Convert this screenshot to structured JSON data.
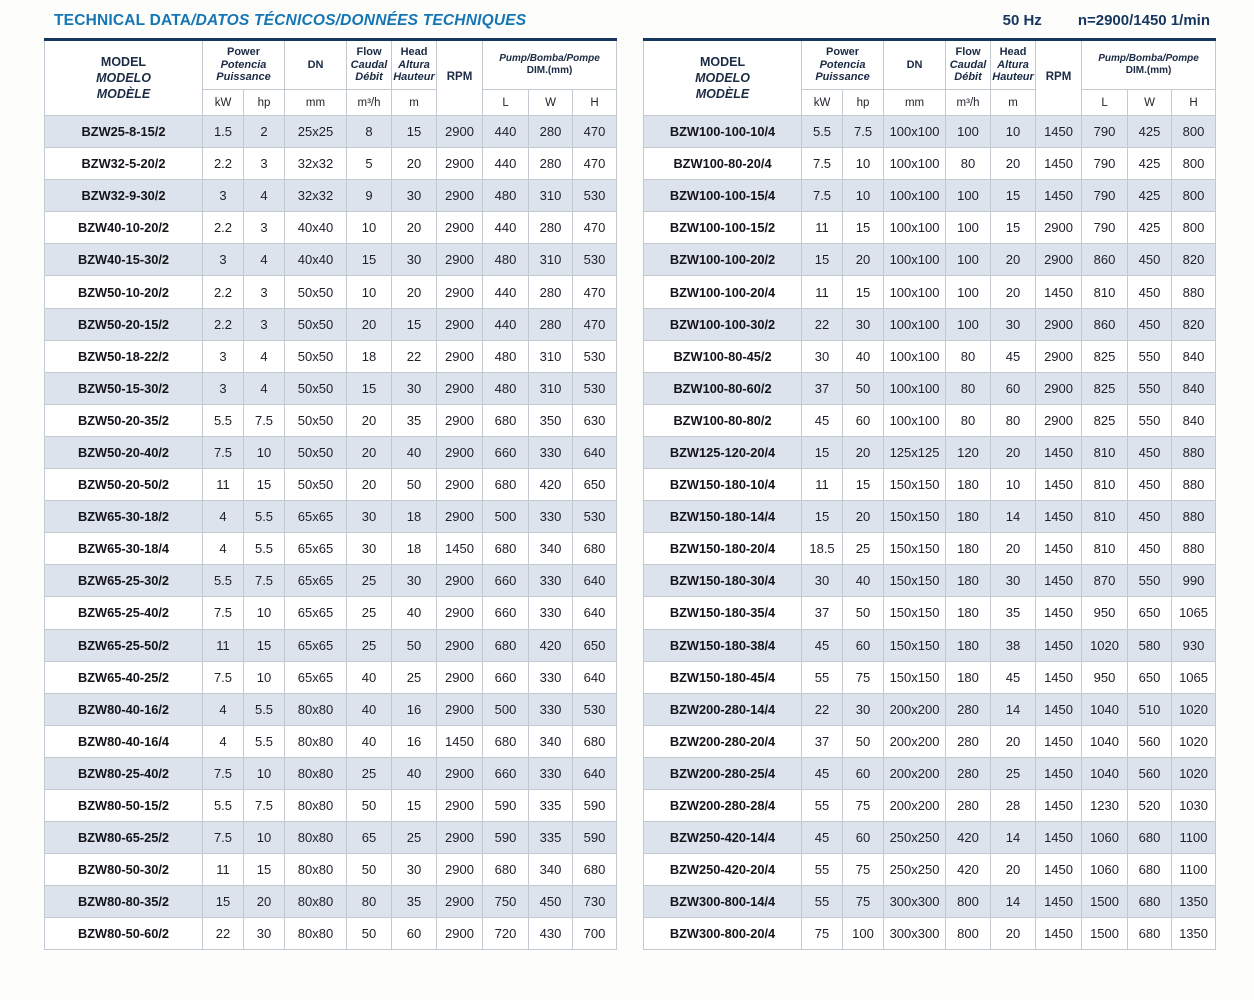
{
  "page": {
    "title_main": "TECHNICAL DATA",
    "title_intl": "/DATOS TÉCNICOS/DONNÉES TECHNIQUES",
    "frequency": "50 Hz",
    "speed": "n=2900/1450 1/min"
  },
  "columns": {
    "model": {
      "l1": "MODEL",
      "l2": "MODELO",
      "l3": "MODÈLE"
    },
    "power": {
      "l1": "Power",
      "l2": "Potencia",
      "l3": "Puissance",
      "units": [
        "kW",
        "hp"
      ]
    },
    "dn": {
      "label": "DN",
      "unit": "mm"
    },
    "flow": {
      "l1": "Flow",
      "l2": "Caudal",
      "l3": "Débit",
      "unit": "m³/h"
    },
    "head": {
      "l1": "Head",
      "l2": "Altura",
      "l3": "Hauteur",
      "unit": "m"
    },
    "rpm": {
      "label": "RPM"
    },
    "dim": {
      "l1": "Pump/Bomba/Pompe",
      "l2": "DIM.(mm)",
      "units": [
        "L",
        "W",
        "H"
      ]
    }
  },
  "tables": {
    "left": {
      "rows": [
        [
          "BZW25-8-15/2",
          "1.5",
          "2",
          "25x25",
          "8",
          "15",
          "2900",
          "440",
          "280",
          "470"
        ],
        [
          "BZW32-5-20/2",
          "2.2",
          "3",
          "32x32",
          "5",
          "20",
          "2900",
          "440",
          "280",
          "470"
        ],
        [
          "BZW32-9-30/2",
          "3",
          "4",
          "32x32",
          "9",
          "30",
          "2900",
          "480",
          "310",
          "530"
        ],
        [
          "BZW40-10-20/2",
          "2.2",
          "3",
          "40x40",
          "10",
          "20",
          "2900",
          "440",
          "280",
          "470"
        ],
        [
          "BZW40-15-30/2",
          "3",
          "4",
          "40x40",
          "15",
          "30",
          "2900",
          "480",
          "310",
          "530"
        ],
        [
          "BZW50-10-20/2",
          "2.2",
          "3",
          "50x50",
          "10",
          "20",
          "2900",
          "440",
          "280",
          "470"
        ],
        [
          "BZW50-20-15/2",
          "2.2",
          "3",
          "50x50",
          "20",
          "15",
          "2900",
          "440",
          "280",
          "470"
        ],
        [
          "BZW50-18-22/2",
          "3",
          "4",
          "50x50",
          "18",
          "22",
          "2900",
          "480",
          "310",
          "530"
        ],
        [
          "BZW50-15-30/2",
          "3",
          "4",
          "50x50",
          "15",
          "30",
          "2900",
          "480",
          "310",
          "530"
        ],
        [
          "BZW50-20-35/2",
          "5.5",
          "7.5",
          "50x50",
          "20",
          "35",
          "2900",
          "680",
          "350",
          "630"
        ],
        [
          "BZW50-20-40/2",
          "7.5",
          "10",
          "50x50",
          "20",
          "40",
          "2900",
          "660",
          "330",
          "640"
        ],
        [
          "BZW50-20-50/2",
          "11",
          "15",
          "50x50",
          "20",
          "50",
          "2900",
          "680",
          "420",
          "650"
        ],
        [
          "BZW65-30-18/2",
          "4",
          "5.5",
          "65x65",
          "30",
          "18",
          "2900",
          "500",
          "330",
          "530"
        ],
        [
          "BZW65-30-18/4",
          "4",
          "5.5",
          "65x65",
          "30",
          "18",
          "1450",
          "680",
          "340",
          "680"
        ],
        [
          "BZW65-25-30/2",
          "5.5",
          "7.5",
          "65x65",
          "25",
          "30",
          "2900",
          "660",
          "330",
          "640"
        ],
        [
          "BZW65-25-40/2",
          "7.5",
          "10",
          "65x65",
          "25",
          "40",
          "2900",
          "660",
          "330",
          "640"
        ],
        [
          "BZW65-25-50/2",
          "11",
          "15",
          "65x65",
          "25",
          "50",
          "2900",
          "680",
          "420",
          "650"
        ],
        [
          "BZW65-40-25/2",
          "7.5",
          "10",
          "65x65",
          "40",
          "25",
          "2900",
          "660",
          "330",
          "640"
        ],
        [
          "BZW80-40-16/2",
          "4",
          "5.5",
          "80x80",
          "40",
          "16",
          "2900",
          "500",
          "330",
          "530"
        ],
        [
          "BZW80-40-16/4",
          "4",
          "5.5",
          "80x80",
          "40",
          "16",
          "1450",
          "680",
          "340",
          "680"
        ],
        [
          "BZW80-25-40/2",
          "7.5",
          "10",
          "80x80",
          "25",
          "40",
          "2900",
          "660",
          "330",
          "640"
        ],
        [
          "BZW80-50-15/2",
          "5.5",
          "7.5",
          "80x80",
          "50",
          "15",
          "2900",
          "590",
          "335",
          "590"
        ],
        [
          "BZW80-65-25/2",
          "7.5",
          "10",
          "80x80",
          "65",
          "25",
          "2900",
          "590",
          "335",
          "590"
        ],
        [
          "BZW80-50-30/2",
          "11",
          "15",
          "80x80",
          "50",
          "30",
          "2900",
          "680",
          "340",
          "680"
        ],
        [
          "BZW80-80-35/2",
          "15",
          "20",
          "80x80",
          "80",
          "35",
          "2900",
          "750",
          "450",
          "730"
        ],
        [
          "BZW80-50-60/2",
          "22",
          "30",
          "80x80",
          "50",
          "60",
          "2900",
          "720",
          "430",
          "700"
        ]
      ]
    },
    "right": {
      "rows": [
        [
          "BZW100-100-10/4",
          "5.5",
          "7.5",
          "100x100",
          "100",
          "10",
          "1450",
          "790",
          "425",
          "800"
        ],
        [
          "BZW100-80-20/4",
          "7.5",
          "10",
          "100x100",
          "80",
          "20",
          "1450",
          "790",
          "425",
          "800"
        ],
        [
          "BZW100-100-15/4",
          "7.5",
          "10",
          "100x100",
          "100",
          "15",
          "1450",
          "790",
          "425",
          "800"
        ],
        [
          "BZW100-100-15/2",
          "11",
          "15",
          "100x100",
          "100",
          "15",
          "2900",
          "790",
          "425",
          "800"
        ],
        [
          "BZW100-100-20/2",
          "15",
          "20",
          "100x100",
          "100",
          "20",
          "2900",
          "860",
          "450",
          "820"
        ],
        [
          "BZW100-100-20/4",
          "11",
          "15",
          "100x100",
          "100",
          "20",
          "1450",
          "810",
          "450",
          "880"
        ],
        [
          "BZW100-100-30/2",
          "22",
          "30",
          "100x100",
          "100",
          "30",
          "2900",
          "860",
          "450",
          "820"
        ],
        [
          "BZW100-80-45/2",
          "30",
          "40",
          "100x100",
          "80",
          "45",
          "2900",
          "825",
          "550",
          "840"
        ],
        [
          "BZW100-80-60/2",
          "37",
          "50",
          "100x100",
          "80",
          "60",
          "2900",
          "825",
          "550",
          "840"
        ],
        [
          "BZW100-80-80/2",
          "45",
          "60",
          "100x100",
          "80",
          "80",
          "2900",
          "825",
          "550",
          "840"
        ],
        [
          "BZW125-120-20/4",
          "15",
          "20",
          "125x125",
          "120",
          "20",
          "1450",
          "810",
          "450",
          "880"
        ],
        [
          "BZW150-180-10/4",
          "11",
          "15",
          "150x150",
          "180",
          "10",
          "1450",
          "810",
          "450",
          "880"
        ],
        [
          "BZW150-180-14/4",
          "15",
          "20",
          "150x150",
          "180",
          "14",
          "1450",
          "810",
          "450",
          "880"
        ],
        [
          "BZW150-180-20/4",
          "18.5",
          "25",
          "150x150",
          "180",
          "20",
          "1450",
          "810",
          "450",
          "880"
        ],
        [
          "BZW150-180-30/4",
          "30",
          "40",
          "150x150",
          "180",
          "30",
          "1450",
          "870",
          "550",
          "990"
        ],
        [
          "BZW150-180-35/4",
          "37",
          "50",
          "150x150",
          "180",
          "35",
          "1450",
          "950",
          "650",
          "1065"
        ],
        [
          "BZW150-180-38/4",
          "45",
          "60",
          "150x150",
          "180",
          "38",
          "1450",
          "1020",
          "580",
          "930"
        ],
        [
          "BZW150-180-45/4",
          "55",
          "75",
          "150x150",
          "180",
          "45",
          "1450",
          "950",
          "650",
          "1065"
        ],
        [
          "BZW200-280-14/4",
          "22",
          "30",
          "200x200",
          "280",
          "14",
          "1450",
          "1040",
          "510",
          "1020"
        ],
        [
          "BZW200-280-20/4",
          "37",
          "50",
          "200x200",
          "280",
          "20",
          "1450",
          "1040",
          "560",
          "1020"
        ],
        [
          "BZW200-280-25/4",
          "45",
          "60",
          "200x200",
          "280",
          "25",
          "1450",
          "1040",
          "560",
          "1020"
        ],
        [
          "BZW200-280-28/4",
          "55",
          "75",
          "200x200",
          "280",
          "28",
          "1450",
          "1230",
          "520",
          "1030"
        ],
        [
          "BZW250-420-14/4",
          "45",
          "60",
          "250x250",
          "420",
          "14",
          "1450",
          "1060",
          "680",
          "1100"
        ],
        [
          "BZW250-420-20/4",
          "55",
          "75",
          "250x250",
          "420",
          "20",
          "1450",
          "1060",
          "680",
          "1100"
        ],
        [
          "BZW300-800-14/4",
          "55",
          "75",
          "300x300",
          "800",
          "14",
          "1450",
          "1500",
          "680",
          "1350"
        ],
        [
          "BZW300-800-20/4",
          "75",
          "100",
          "300x300",
          "800",
          "20",
          "1450",
          "1500",
          "680",
          "1350"
        ]
      ]
    }
  },
  "colors": {
    "title_blue": "#1576b4",
    "navy": "#17365d",
    "row_shade": "#dce3ed"
  }
}
